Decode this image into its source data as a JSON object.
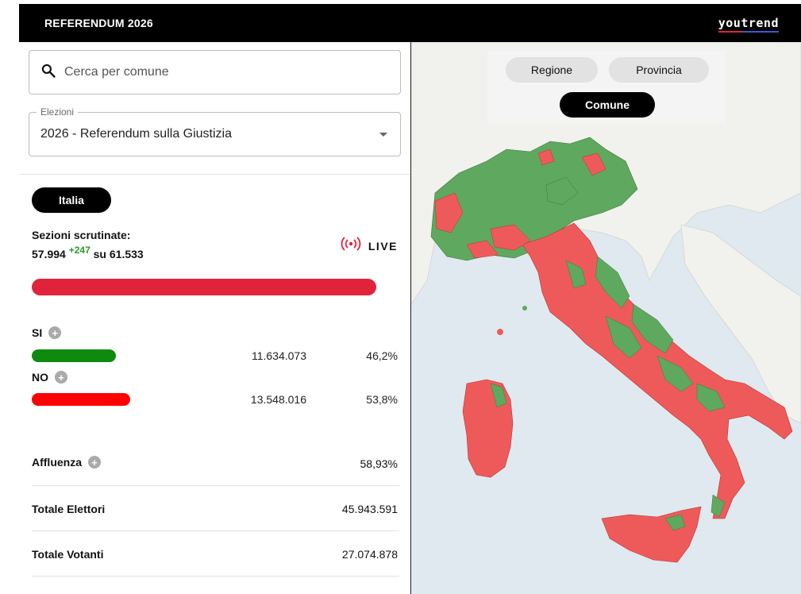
{
  "header": {
    "title": "REFERENDUM 2026",
    "brand": "youtrend"
  },
  "search": {
    "placeholder": "Cerca per comune"
  },
  "election_select": {
    "legend": "Elezioni",
    "value": "2026 - Referendum sulla Giustizia"
  },
  "area_pill": "Italia",
  "sections": {
    "label": "Sezioni scrutinate:",
    "counted": "57.994",
    "delta": "+247",
    "of_label": "su",
    "total": "61.533",
    "progress": 0.9425
  },
  "live_label": "LIVE",
  "results": [
    {
      "label": "SI",
      "votes": "11.634.073",
      "percent": "46,2%",
      "share": 0.462,
      "color": "#0e8a0e"
    },
    {
      "label": "NO",
      "votes": "13.548.016",
      "percent": "53,8%",
      "share": 0.538,
      "color": "#ff0000"
    }
  ],
  "stats": [
    {
      "label": "Affluenza",
      "value": "58,93%"
    },
    {
      "label": "Totale Elettori",
      "value": "45.943.591"
    },
    {
      "label": "Totale Votanti",
      "value": "27.074.878"
    }
  ],
  "map_tabs": {
    "regione": "Regione",
    "provincia": "Provincia",
    "comune": "Comune",
    "active": "Comune"
  },
  "colors": {
    "yes": "#5fa85f",
    "no": "#ee5a5a",
    "sea": "#dfe9ef",
    "land": "#f2f2ee"
  }
}
